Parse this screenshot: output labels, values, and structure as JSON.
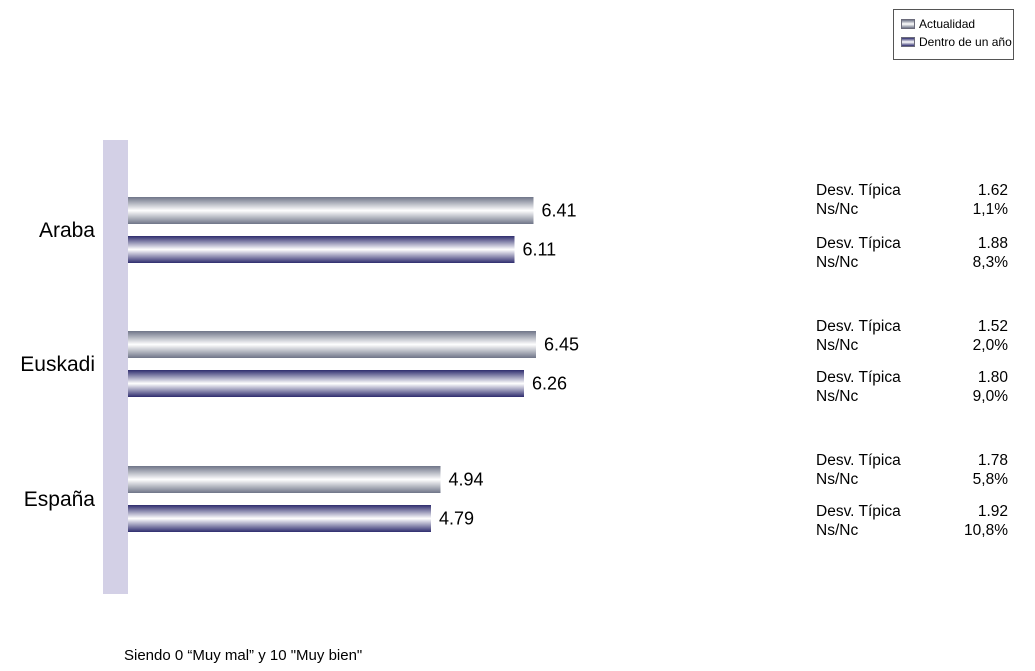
{
  "chart_data": {
    "type": "bar",
    "orientation": "horizontal",
    "categories": [
      "Araba",
      "Euskadi",
      "España"
    ],
    "series": [
      {
        "name": "Actualidad",
        "values": [
          6.41,
          6.45,
          4.94
        ]
      },
      {
        "name": "Dentro de un año",
        "values": [
          6.11,
          6.26,
          4.79
        ]
      }
    ],
    "data_labels": [
      [
        "6.41",
        "6.45",
        "4.94"
      ],
      [
        "6.11",
        "6.26",
        "4.79"
      ]
    ],
    "xlim": [
      0,
      10
    ],
    "grid": false,
    "legend": {
      "position": "top-right",
      "items": [
        {
          "label": "Actualidad",
          "color": "#7d8396"
        },
        {
          "label": "Dentro de un año",
          "color": "#3d3c7a"
        }
      ]
    },
    "axis_color": "#d3d0e6",
    "stats": [
      {
        "desv_label": "Desv. Típica",
        "desv_value": "1.62",
        "nsnc_label": "Ns/Nc",
        "nsnc_value": "1,1%"
      },
      {
        "desv_label": "Desv. Típica",
        "desv_value": "1.88",
        "nsnc_label": "Ns/Nc",
        "nsnc_value": "8,3%"
      },
      {
        "desv_label": "Desv. Típica",
        "desv_value": "1.52",
        "nsnc_label": "Ns/Nc",
        "nsnc_value": "2,0%"
      },
      {
        "desv_label": "Desv. Típica",
        "desv_value": "1.80",
        "nsnc_label": "Ns/Nc",
        "nsnc_value": "9,0%"
      },
      {
        "desv_label": "Desv. Típica",
        "desv_value": "1.78",
        "nsnc_label": "Ns/Nc",
        "nsnc_value": "5,8%"
      },
      {
        "desv_label": "Desv. Típica",
        "desv_value": "1.92",
        "nsnc_label": "Ns/Nc",
        "nsnc_value": "10,8%"
      }
    ],
    "footnote": "Siendo 0 “Muy mal” y 10 \"Muy bien\""
  }
}
